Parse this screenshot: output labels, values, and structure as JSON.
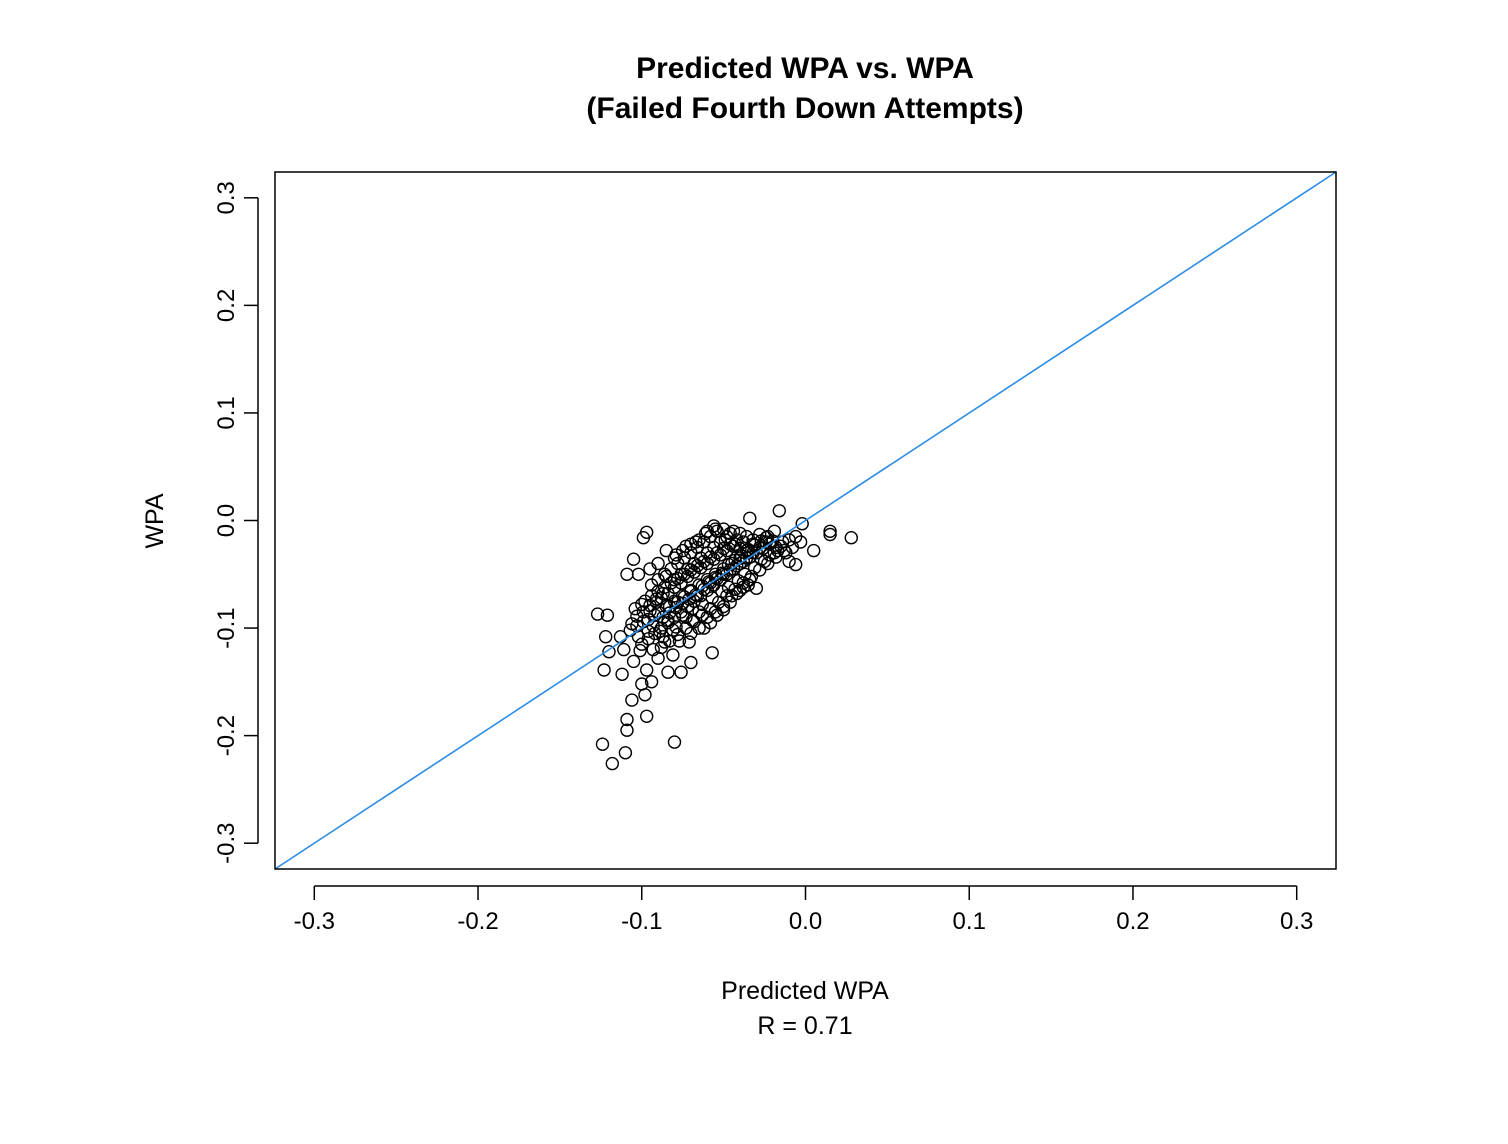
{
  "chart_data": {
    "type": "scatter",
    "title": [
      "Predicted WPA vs. WPA",
      "(Failed Fourth Down Attempts)"
    ],
    "xlabel": "Predicted WPA",
    "xlabel_sub": "R = 0.71",
    "ylabel": "WPA",
    "xlim": [
      -0.324,
      0.324
    ],
    "ylim": [
      -0.324,
      0.324
    ],
    "xticks": [
      "-0.3",
      "-0.2",
      "-0.1",
      "0.0",
      "0.1",
      "0.2",
      "0.3"
    ],
    "yticks": [
      "-0.3",
      "-0.2",
      "-0.1",
      "0.0",
      "0.1",
      "0.2",
      "0.3"
    ],
    "reference_line": {
      "slope": 1,
      "intercept": 0,
      "color": "#2b8ce6"
    },
    "point_color": "#000000",
    "grid": false,
    "points": [
      [
        -0.124,
        -0.208
      ],
      [
        -0.118,
        -0.226
      ],
      [
        -0.11,
        -0.216
      ],
      [
        -0.08,
        -0.206
      ],
      [
        -0.109,
        -0.195
      ],
      [
        -0.109,
        -0.185
      ],
      [
        -0.097,
        -0.182
      ],
      [
        -0.106,
        -0.167
      ],
      [
        -0.098,
        -0.162
      ],
      [
        -0.1,
        -0.152
      ],
      [
        -0.094,
        -0.15
      ],
      [
        -0.076,
        -0.141
      ],
      [
        -0.084,
        -0.141
      ],
      [
        -0.07,
        -0.132
      ],
      [
        -0.112,
        -0.143
      ],
      [
        -0.123,
        -0.139
      ],
      [
        -0.105,
        -0.131
      ],
      [
        -0.12,
        -0.122
      ],
      [
        -0.113,
        -0.108
      ],
      [
        -0.122,
        -0.108
      ],
      [
        -0.127,
        -0.087
      ],
      [
        -0.121,
        -0.088
      ],
      [
        -0.105,
        -0.036
      ],
      [
        -0.102,
        -0.05
      ],
      [
        -0.109,
        -0.05
      ],
      [
        -0.099,
        -0.016
      ],
      [
        -0.097,
        -0.011
      ],
      [
        -0.057,
        -0.123
      ],
      [
        -0.03,
        -0.063
      ],
      [
        0.028,
        -0.016
      ],
      [
        0.015,
        -0.01
      ],
      [
        0.015,
        -0.013
      ],
      [
        0.005,
        -0.028
      ],
      [
        -0.016,
        0.009
      ],
      [
        -0.034,
        0.002
      ],
      [
        -0.002,
        -0.003
      ],
      [
        -0.056,
        -0.005
      ],
      [
        -0.01,
        -0.038
      ],
      [
        -0.006,
        -0.041
      ],
      [
        -0.111,
        -0.12
      ],
      [
        -0.101,
        -0.121
      ],
      [
        -0.097,
        -0.139
      ],
      [
        -0.09,
        -0.128
      ],
      [
        -0.086,
        -0.113
      ],
      [
        -0.081,
        -0.125
      ],
      [
        -0.071,
        -0.113
      ],
      [
        -0.102,
        -0.108
      ],
      [
        -0.096,
        -0.103
      ],
      [
        -0.093,
        -0.098
      ],
      [
        -0.089,
        -0.103
      ],
      [
        -0.084,
        -0.093
      ],
      [
        -0.079,
        -0.099
      ],
      [
        -0.075,
        -0.088
      ],
      [
        -0.069,
        -0.093
      ],
      [
        -0.065,
        -0.085
      ],
      [
        -0.106,
        -0.096
      ],
      [
        -0.103,
        -0.089
      ],
      [
        -0.099,
        -0.085
      ],
      [
        -0.095,
        -0.079
      ],
      [
        -0.091,
        -0.073
      ],
      [
        -0.087,
        -0.068
      ],
      [
        -0.083,
        -0.08
      ],
      [
        -0.078,
        -0.076
      ],
      [
        -0.074,
        -0.071
      ],
      [
        -0.07,
        -0.066
      ],
      [
        -0.066,
        -0.07
      ],
      [
        -0.062,
        -0.064
      ],
      [
        -0.058,
        -0.058
      ],
      [
        -0.054,
        -0.054
      ],
      [
        -0.05,
        -0.05
      ],
      [
        -0.046,
        -0.046
      ],
      [
        -0.042,
        -0.042
      ],
      [
        -0.038,
        -0.038
      ],
      [
        -0.034,
        -0.034
      ],
      [
        -0.03,
        -0.03
      ],
      [
        -0.026,
        -0.026
      ],
      [
        -0.022,
        -0.022
      ],
      [
        -0.018,
        -0.025
      ],
      [
        -0.014,
        -0.02
      ],
      [
        -0.01,
        -0.018
      ],
      [
        -0.006,
        -0.015
      ],
      [
        -0.003,
        -0.02
      ],
      [
        -0.08,
        -0.055
      ],
      [
        -0.076,
        -0.05
      ],
      [
        -0.072,
        -0.045
      ],
      [
        -0.068,
        -0.04
      ],
      [
        -0.064,
        -0.035
      ],
      [
        -0.06,
        -0.03
      ],
      [
        -0.056,
        -0.025
      ],
      [
        -0.052,
        -0.02
      ],
      [
        -0.048,
        -0.015
      ],
      [
        -0.044,
        -0.01
      ],
      [
        -0.04,
        -0.012
      ],
      [
        -0.036,
        -0.015
      ],
      [
        -0.032,
        -0.018
      ],
      [
        -0.028,
        -0.013
      ],
      [
        -0.024,
        -0.016
      ],
      [
        -0.02,
        -0.019
      ],
      [
        -0.094,
        -0.06
      ],
      [
        -0.09,
        -0.055
      ],
      [
        -0.086,
        -0.05
      ],
      [
        -0.082,
        -0.045
      ],
      [
        -0.078,
        -0.04
      ],
      [
        -0.074,
        -0.035
      ],
      [
        -0.07,
        -0.03
      ],
      [
        -0.066,
        -0.025
      ],
      [
        -0.062,
        -0.02
      ],
      [
        -0.058,
        -0.015
      ],
      [
        -0.054,
        -0.01
      ],
      [
        -0.05,
        -0.008
      ],
      [
        -0.046,
        -0.012
      ],
      [
        -0.085,
        -0.028
      ],
      [
        -0.079,
        -0.032
      ],
      [
        -0.073,
        -0.024
      ],
      [
        -0.067,
        -0.02
      ],
      [
        -0.061,
        -0.012
      ],
      [
        -0.055,
        -0.008
      ],
      [
        -0.049,
        -0.018
      ],
      [
        -0.043,
        -0.022
      ],
      [
        -0.1,
        -0.115
      ],
      [
        -0.096,
        -0.11
      ],
      [
        -0.092,
        -0.105
      ],
      [
        -0.088,
        -0.1
      ],
      [
        -0.084,
        -0.095
      ],
      [
        -0.08,
        -0.09
      ],
      [
        -0.076,
        -0.085
      ],
      [
        -0.072,
        -0.08
      ],
      [
        -0.068,
        -0.075
      ],
      [
        -0.064,
        -0.07
      ],
      [
        -0.06,
        -0.065
      ],
      [
        -0.056,
        -0.06
      ],
      [
        -0.052,
        -0.055
      ],
      [
        -0.048,
        -0.05
      ],
      [
        -0.044,
        -0.045
      ],
      [
        -0.04,
        -0.04
      ],
      [
        -0.036,
        -0.035
      ],
      [
        -0.032,
        -0.03
      ],
      [
        -0.028,
        -0.025
      ],
      [
        -0.024,
        -0.02
      ],
      [
        -0.09,
        -0.085
      ],
      [
        -0.085,
        -0.08
      ],
      [
        -0.08,
        -0.075
      ],
      [
        -0.075,
        -0.07
      ],
      [
        -0.07,
        -0.065
      ],
      [
        -0.065,
        -0.06
      ],
      [
        -0.06,
        -0.055
      ],
      [
        -0.055,
        -0.05
      ],
      [
        -0.05,
        -0.045
      ],
      [
        -0.045,
        -0.04
      ],
      [
        -0.04,
        -0.035
      ],
      [
        -0.035,
        -0.03
      ],
      [
        -0.098,
        -0.075
      ],
      [
        -0.094,
        -0.07
      ],
      [
        -0.09,
        -0.066
      ],
      [
        -0.086,
        -0.062
      ],
      [
        -0.082,
        -0.058
      ],
      [
        -0.078,
        -0.054
      ],
      [
        -0.074,
        -0.05
      ],
      [
        -0.07,
        -0.046
      ],
      [
        -0.066,
        -0.042
      ],
      [
        -0.062,
        -0.038
      ],
      [
        -0.058,
        -0.034
      ],
      [
        -0.054,
        -0.03
      ],
      [
        -0.05,
        -0.026
      ],
      [
        -0.046,
        -0.022
      ],
      [
        -0.042,
        -0.018
      ],
      [
        -0.038,
        -0.02
      ],
      [
        -0.088,
        -0.118
      ],
      [
        -0.083,
        -0.112
      ],
      [
        -0.078,
        -0.106
      ],
      [
        -0.073,
        -0.1
      ],
      [
        -0.068,
        -0.094
      ],
      [
        -0.063,
        -0.088
      ],
      [
        -0.058,
        -0.082
      ],
      [
        -0.053,
        -0.076
      ],
      [
        -0.048,
        -0.07
      ],
      [
        -0.043,
        -0.064
      ],
      [
        -0.038,
        -0.058
      ],
      [
        -0.033,
        -0.052
      ],
      [
        -0.028,
        -0.046
      ],
      [
        -0.023,
        -0.04
      ],
      [
        -0.018,
        -0.034
      ],
      [
        -0.013,
        -0.028
      ],
      [
        -0.07,
        -0.105
      ],
      [
        -0.065,
        -0.1
      ],
      [
        -0.06,
        -0.09
      ],
      [
        -0.055,
        -0.085
      ],
      [
        -0.05,
        -0.08
      ],
      [
        -0.045,
        -0.07
      ],
      [
        -0.04,
        -0.065
      ],
      [
        -0.035,
        -0.06
      ],
      [
        -0.104,
        -0.082
      ],
      [
        -0.1,
        -0.078
      ],
      [
        -0.096,
        -0.092
      ],
      [
        -0.092,
        -0.088
      ],
      [
        -0.088,
        -0.072
      ],
      [
        -0.084,
        -0.068
      ],
      [
        -0.08,
        -0.062
      ],
      [
        -0.076,
        -0.058
      ],
      [
        -0.072,
        -0.052
      ],
      [
        -0.068,
        -0.048
      ],
      [
        -0.064,
        -0.044
      ],
      [
        -0.06,
        -0.04
      ],
      [
        -0.056,
        -0.036
      ],
      [
        -0.052,
        -0.032
      ],
      [
        -0.048,
        -0.028
      ],
      [
        -0.044,
        -0.024
      ],
      [
        -0.04,
        -0.026
      ],
      [
        -0.036,
        -0.028
      ],
      [
        -0.032,
        -0.022
      ],
      [
        -0.027,
        -0.036
      ],
      [
        -0.022,
        -0.032
      ],
      [
        -0.017,
        -0.028
      ],
      [
        -0.012,
        -0.03
      ],
      [
        -0.008,
        -0.025
      ],
      [
        -0.095,
        -0.045
      ],
      [
        -0.09,
        -0.04
      ],
      [
        -0.085,
        -0.052
      ],
      [
        -0.08,
        -0.035
      ],
      [
        -0.075,
        -0.028
      ],
      [
        -0.07,
        -0.022
      ],
      [
        -0.065,
        -0.018
      ],
      [
        -0.06,
        -0.01
      ],
      [
        -0.093,
        -0.12
      ],
      [
        -0.087,
        -0.108
      ],
      [
        -0.081,
        -0.102
      ],
      [
        -0.077,
        -0.112
      ],
      [
        -0.073,
        -0.09
      ],
      [
        -0.069,
        -0.082
      ],
      [
        -0.063,
        -0.078
      ],
      [
        -0.057,
        -0.072
      ],
      [
        -0.051,
        -0.066
      ],
      [
        -0.047,
        -0.062
      ],
      [
        -0.041,
        -0.056
      ],
      [
        -0.037,
        -0.05
      ],
      [
        -0.031,
        -0.044
      ],
      [
        -0.025,
        -0.038
      ],
      [
        -0.019,
        -0.03
      ],
      [
        -0.015,
        -0.024
      ],
      [
        -0.062,
        -0.1
      ],
      [
        -0.058,
        -0.095
      ],
      [
        -0.054,
        -0.088
      ],
      [
        -0.05,
        -0.083
      ],
      [
        -0.046,
        -0.076
      ],
      [
        -0.042,
        -0.068
      ],
      [
        -0.038,
        -0.062
      ],
      [
        -0.034,
        -0.055
      ],
      [
        -0.107,
        -0.102
      ],
      [
        -0.103,
        -0.098
      ],
      [
        -0.099,
        -0.094
      ],
      [
        -0.095,
        -0.084
      ],
      [
        -0.091,
        -0.076
      ],
      [
        -0.087,
        -0.09
      ],
      [
        -0.083,
        -0.086
      ],
      [
        -0.079,
        -0.081
      ],
      [
        -0.075,
        -0.077
      ],
      [
        -0.071,
        -0.073
      ],
      [
        -0.067,
        -0.069
      ],
      [
        -0.063,
        -0.061
      ],
      [
        -0.059,
        -0.057
      ],
      [
        -0.055,
        -0.053
      ],
      [
        -0.051,
        -0.049
      ],
      [
        -0.047,
        -0.041
      ],
      [
        -0.043,
        -0.037
      ],
      [
        -0.039,
        -0.033
      ],
      [
        -0.035,
        -0.027
      ],
      [
        -0.031,
        -0.023
      ],
      [
        -0.027,
        -0.019
      ],
      [
        -0.023,
        -0.015
      ],
      [
        -0.019,
        -0.01
      ]
    ]
  }
}
